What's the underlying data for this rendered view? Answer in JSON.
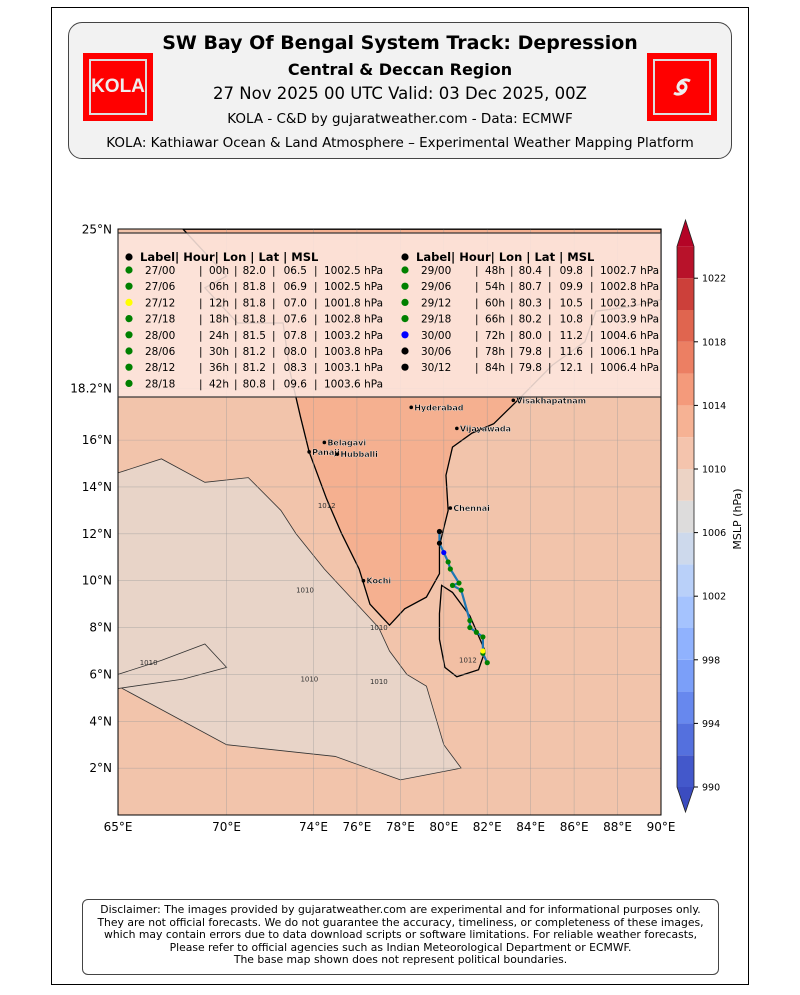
{
  "header": {
    "title": "SW Bay Of Bengal System Track: Depression",
    "subtitle": "Central & Deccan Region",
    "dates": "27 Nov 2025 00 UTC Valid: 03 Dec 2025, 00Z",
    "credit": "KOLA - C&D by gujaratweather.com  -  Data: ECMWF",
    "tagline": "KOLA: Kathiawar Ocean & Land Atmosphere – Experimental Weather Mapping Platform",
    "logo_left": "KOLA",
    "logo_right": "cyclone-icon"
  },
  "map": {
    "lon_ticks": [
      {
        "v": 65,
        "t": "65°E"
      },
      {
        "v": 70,
        "t": "70°E"
      },
      {
        "v": 74,
        "t": "74°E"
      },
      {
        "v": 76,
        "t": "76°E"
      },
      {
        "v": 78,
        "t": "78°E"
      },
      {
        "v": 80,
        "t": "80°E"
      },
      {
        "v": 82,
        "t": "82°E"
      },
      {
        "v": 84,
        "t": "84°E"
      },
      {
        "v": 86,
        "t": "86°E"
      },
      {
        "v": 88,
        "t": "88°E"
      },
      {
        "v": 90,
        "t": "90°E"
      }
    ],
    "lat_ticks": [
      {
        "v": 25,
        "t": "25°N"
      },
      {
        "v": 18.2,
        "t": "18.2°N"
      },
      {
        "v": 16,
        "t": "16°N"
      },
      {
        "v": 14,
        "t": "14°N"
      },
      {
        "v": 12,
        "t": "12°N"
      },
      {
        "v": 10,
        "t": "10°N"
      },
      {
        "v": 8,
        "t": "8°N"
      },
      {
        "v": 6,
        "t": "6°N"
      },
      {
        "v": 4,
        "t": "4°N"
      },
      {
        "v": 2,
        "t": "2°N"
      }
    ],
    "cities": [
      {
        "n": "Hyderabad",
        "lon": 78.5,
        "lat": 17.4
      },
      {
        "n": "Visakhapatnam",
        "lon": 83.2,
        "lat": 17.7
      },
      {
        "n": "Belagavi",
        "lon": 74.5,
        "lat": 15.9
      },
      {
        "n": "Vijayawada",
        "lon": 80.6,
        "lat": 16.5
      },
      {
        "n": "Panaji",
        "lon": 73.8,
        "lat": 15.5
      },
      {
        "n": "Hubballi",
        "lon": 75.1,
        "lat": 15.4
      },
      {
        "n": "Chennai",
        "lon": 80.3,
        "lat": 13.1
      },
      {
        "n": "Kochi",
        "lon": 76.3,
        "lat": 10.0
      }
    ],
    "contour_labels": [
      {
        "t": "1012",
        "lon": 74.2,
        "lat": 13.1
      },
      {
        "t": "1010",
        "lon": 73.2,
        "lat": 9.5
      },
      {
        "t": "1010",
        "lon": 76.6,
        "lat": 7.9
      },
      {
        "t": "1010",
        "lon": 66,
        "lat": 6.4
      },
      {
        "t": "1010",
        "lon": 73.4,
        "lat": 5.7
      },
      {
        "t": "1010",
        "lon": 76.6,
        "lat": 5.6
      },
      {
        "t": "1012",
        "lon": 80.7,
        "lat": 6.5
      }
    ]
  },
  "track_table": {
    "header": "Label| Hour| Lon  |  Lat  |    MSL",
    "rows": [
      {
        "label": "27/00",
        "hour": "00h",
        "lon": 82.0,
        "lat": "06.5",
        "msl": "1002.5 hPa",
        "color": "#008000"
      },
      {
        "label": "27/06",
        "hour": "06h",
        "lon": 81.8,
        "lat": "06.9",
        "msl": "1002.5 hPa",
        "color": "#008000"
      },
      {
        "label": "27/12",
        "hour": "12h",
        "lon": 81.8,
        "lat": "07.0",
        "msl": "1001.8 hPa",
        "color": "#ffff00"
      },
      {
        "label": "27/18",
        "hour": "18h",
        "lon": 81.8,
        "lat": "07.6",
        "msl": "1002.8 hPa",
        "color": "#008000"
      },
      {
        "label": "28/00",
        "hour": "24h",
        "lon": 81.5,
        "lat": "07.8",
        "msl": "1003.2 hPa",
        "color": "#008000"
      },
      {
        "label": "28/06",
        "hour": "30h",
        "lon": 81.2,
        "lat": "08.0",
        "msl": "1003.8 hPa",
        "color": "#008000"
      },
      {
        "label": "28/12",
        "hour": "36h",
        "lon": 81.2,
        "lat": "08.3",
        "msl": "1003.1 hPa",
        "color": "#008000"
      },
      {
        "label": "28/18",
        "hour": "42h",
        "lon": 80.8,
        "lat": "09.6",
        "msl": "1003.6 hPa",
        "color": "#008000"
      },
      {
        "label": "29/00",
        "hour": "48h",
        "lon": 80.4,
        "lat": "09.8",
        "msl": "1002.7 hPa",
        "color": "#008000"
      },
      {
        "label": "29/06",
        "hour": "54h",
        "lon": 80.7,
        "lat": "09.9",
        "msl": "1002.8 hPa",
        "color": "#008000"
      },
      {
        "label": "29/12",
        "hour": "60h",
        "lon": 80.3,
        "lat": "10.5",
        "msl": "1002.3 hPa",
        "color": "#008000"
      },
      {
        "label": "29/18",
        "hour": "66h",
        "lon": 80.2,
        "lat": "10.8",
        "msl": "1003.9 hPa",
        "color": "#008000"
      },
      {
        "label": "30/00",
        "hour": "72h",
        "lon": 80.0,
        "lat": "11.2",
        "msl": "1004.6 hPa",
        "color": "#0000ff"
      },
      {
        "label": "30/06",
        "hour": "78h",
        "lon": 79.8,
        "lat": "11.6",
        "msl": "1006.1 hPa",
        "color": "#000000"
      },
      {
        "label": "30/12",
        "hour": "84h",
        "lon": 79.8,
        "lat": "12.1",
        "msl": "1006.4 hPa",
        "color": "#000000"
      }
    ]
  },
  "colorbar": {
    "label": "MSLP (hPa)",
    "ticks": [
      990,
      994,
      998,
      1002,
      1006,
      1010,
      1014,
      1018,
      1022
    ],
    "min": 990,
    "max": 1024,
    "colors": [
      "#4358cb",
      "#5470de",
      "#6788ee",
      "#7b9ff9",
      "#90b2fe",
      "#a5c3fe",
      "#b9d0f9",
      "#cdd9ec",
      "#dddcdc",
      "#ecd3c5",
      "#f4c4ad",
      "#f6b294",
      "#f49a7b",
      "#ec7f63",
      "#e0654f",
      "#cc403a",
      "#b8122a"
    ],
    "under": "#3b4cc0",
    "over": "#b40426"
  },
  "disclaimer": [
    "Disclaimer: The images provided by gujaratweather.com are experimental and for informational purposes only.",
    "They are not official forecasts. We do not guarantee the accuracy, timeliness, or completeness of these images,",
    "which may contain errors due to data download scripts or software limitations. For reliable weather forecasts,",
    "Please refer to official agencies such as Indian Meteorological Department or ECMWF.",
    "The base map shown does not represent political boundaries."
  ]
}
